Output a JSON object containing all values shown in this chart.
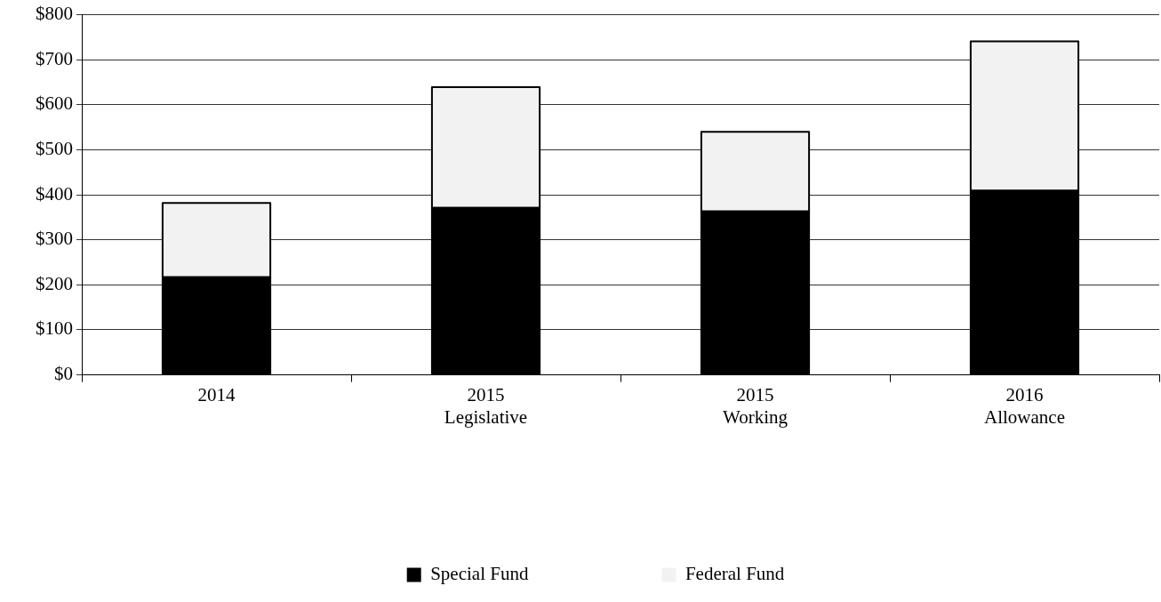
{
  "chart_data": {
    "type": "bar",
    "stacked": true,
    "categories": [
      "2014",
      "2015\nLegislative",
      "2015\nWorking",
      "2016\nAllowance"
    ],
    "series": [
      {
        "name": "Special Fund",
        "color": "#000000",
        "values": [
          217,
          371,
          363,
          409
        ]
      },
      {
        "name": "Federal Fund",
        "color": "#f2f2f2",
        "values": [
          165,
          268,
          177,
          332
        ]
      }
    ],
    "ylim": [
      0,
      800
    ],
    "yticks": [
      {
        "value": 0,
        "label": "$0"
      },
      {
        "value": 100,
        "label": "$100"
      },
      {
        "value": 200,
        "label": "$200"
      },
      {
        "value": 300,
        "label": "$300"
      },
      {
        "value": 400,
        "label": "$400"
      },
      {
        "value": 500,
        "label": "$500"
      },
      {
        "value": 600,
        "label": "$600"
      },
      {
        "value": 700,
        "label": "$700"
      },
      {
        "value": 800,
        "label": "$800"
      }
    ],
    "grid": "y",
    "legend": "bottom"
  }
}
